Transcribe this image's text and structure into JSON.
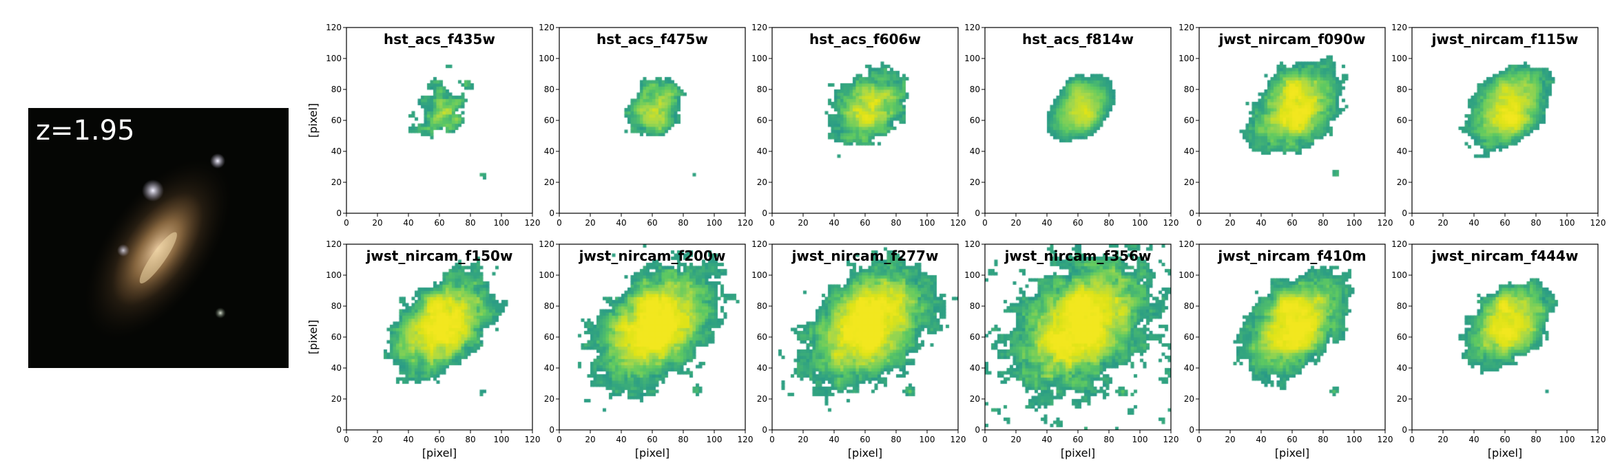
{
  "chart_data": {
    "type": "heatmap",
    "redshift_label": "z=1.95",
    "colors": {
      "background": "#ffffff",
      "thumbnail_background": "#050604",
      "colormap": [
        "#21918c",
        "#35a77e",
        "#5ec962",
        "#a6d84a",
        "#dde318",
        "#f2e71f"
      ]
    },
    "x_axis": {
      "label": "[pixel]",
      "range": [
        0,
        120
      ],
      "ticks": [
        0,
        20,
        40,
        60,
        80,
        100,
        120
      ]
    },
    "y_axis": {
      "label": "[pixel]",
      "range": [
        0,
        120
      ],
      "ticks": [
        0,
        20,
        40,
        60,
        80,
        100,
        120
      ]
    },
    "galaxy": {
      "center_x": 62,
      "center_y": 68,
      "position_angle_deg": 45,
      "companion_x": 88,
      "companion_y": 25
    },
    "panels": [
      {
        "filter": "hst_acs_f435w",
        "row": 0,
        "col": 0,
        "noise": 0.75,
        "signal": 0.55,
        "cut": 0.58,
        "size": 0.85
      },
      {
        "filter": "hst_acs_f475w",
        "row": 0,
        "col": 1,
        "noise": 0.5,
        "signal": 0.75,
        "cut": 0.55,
        "size": 0.85
      },
      {
        "filter": "hst_acs_f606w",
        "row": 0,
        "col": 2,
        "noise": 0.6,
        "signal": 0.85,
        "cut": 0.52,
        "size": 0.95
      },
      {
        "filter": "hst_acs_f814w",
        "row": 0,
        "col": 3,
        "noise": 0.15,
        "signal": 0.95,
        "cut": 0.5,
        "size": 0.95
      },
      {
        "filter": "jwst_nircam_f090w",
        "row": 0,
        "col": 4,
        "noise": 0.55,
        "signal": 1.0,
        "cut": 0.48,
        "size": 1.05
      },
      {
        "filter": "jwst_nircam_f115w",
        "row": 0,
        "col": 5,
        "noise": 0.4,
        "signal": 1.0,
        "cut": 0.48,
        "size": 1.05
      },
      {
        "filter": "jwst_nircam_f150w",
        "row": 1,
        "col": 0,
        "noise": 0.55,
        "signal": 1.1,
        "cut": 0.45,
        "size": 1.1
      },
      {
        "filter": "jwst_nircam_f200w",
        "row": 1,
        "col": 1,
        "noise": 0.6,
        "signal": 1.2,
        "cut": 0.42,
        "size": 1.2
      },
      {
        "filter": "jwst_nircam_f277w",
        "row": 1,
        "col": 2,
        "noise": 0.6,
        "signal": 1.2,
        "cut": 0.42,
        "size": 1.25
      },
      {
        "filter": "jwst_nircam_f356w",
        "row": 1,
        "col": 3,
        "noise": 0.7,
        "signal": 1.2,
        "cut": 0.4,
        "size": 1.3
      },
      {
        "filter": "jwst_nircam_f410m",
        "row": 1,
        "col": 4,
        "noise": 0.5,
        "signal": 1.1,
        "cut": 0.46,
        "size": 1.15
      },
      {
        "filter": "jwst_nircam_f444w",
        "row": 1,
        "col": 5,
        "noise": 0.45,
        "signal": 1.0,
        "cut": 0.52,
        "size": 1.1
      }
    ]
  }
}
